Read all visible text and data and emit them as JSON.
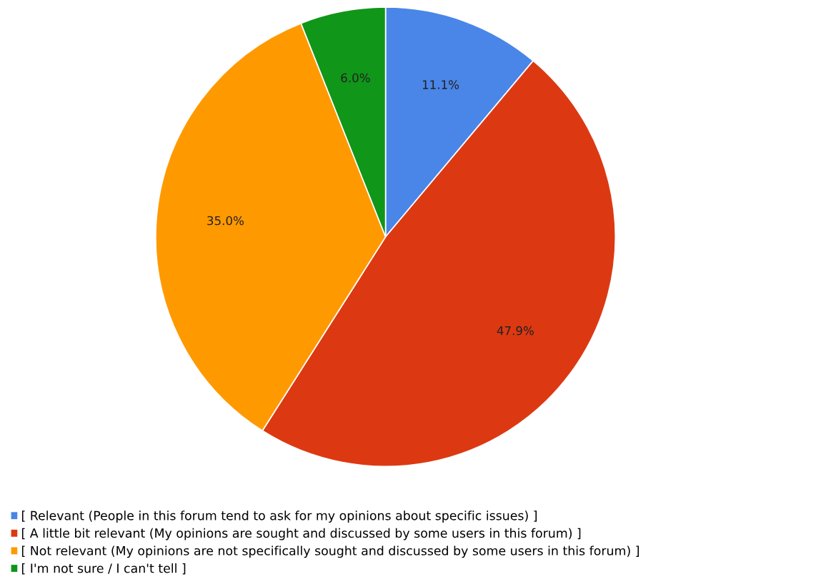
{
  "chart_data": {
    "type": "pie",
    "categories": [
      "[ Relevant (People in this forum tend to ask for my opinions about specific issues) ]",
      "[ A little bit relevant (My opinions are sought and discussed by some users in this forum) ]",
      "[ Not relevant (My opinions are not specifically sought and discussed by some users in this forum) ]",
      "[ I'm not sure / I can't tell ]"
    ],
    "values": [
      11.1,
      47.9,
      35.0,
      6.0
    ],
    "value_labels": [
      "11.1%",
      "47.9%",
      "35.0%",
      "6.0%"
    ],
    "colors": [
      "#4a86e8",
      "#dc3912",
      "#ff9900",
      "#109618"
    ],
    "legend": "bottom"
  }
}
